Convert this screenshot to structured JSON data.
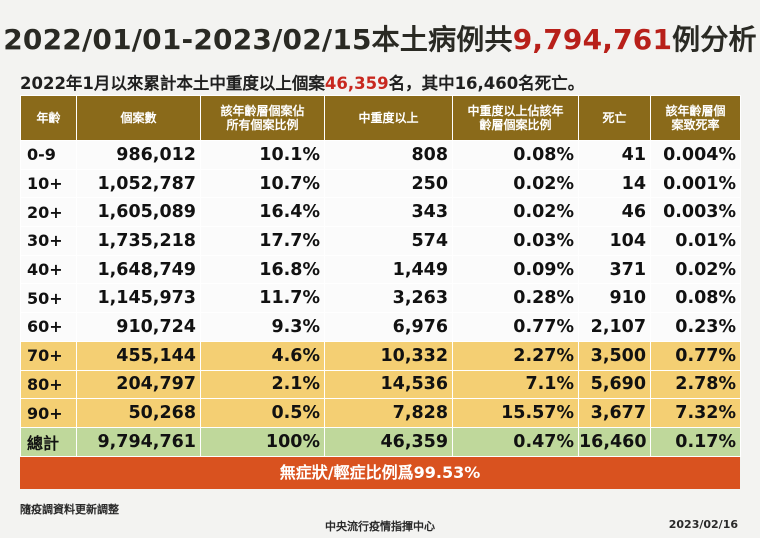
{
  "title": {
    "part1": "2022/01/01-2023/02/15本土病例共",
    "highlight": "9,794,761",
    "part2": "例分析"
  },
  "subtitle": {
    "part1": "2022年1月以來累計本土中重度以上個案",
    "highlight": "46,359",
    "part2": "名，其中16,460名死亡。"
  },
  "colors": {
    "header_bg": "#8a6a1a",
    "highlight_red": "#b8201a",
    "row_elderly": "#f4cf73",
    "row_total": "#bfd89b",
    "banner": "#d9521f"
  },
  "table": {
    "headers": [
      "年齡",
      "個案數",
      "該年齡層個案佔所有個案比例",
      "中重度以上",
      "中重度以上佔該年齡層個案比例",
      "死亡",
      "該年齡層個案致死率"
    ],
    "rows": [
      [
        "0-9",
        "986,012",
        "10.1%",
        "808",
        "0.08%",
        "41",
        "0.004%"
      ],
      [
        "10+",
        "1,052,787",
        "10.7%",
        "250",
        "0.02%",
        "14",
        "0.001%"
      ],
      [
        "20+",
        "1,605,089",
        "16.4%",
        "343",
        "0.02%",
        "46",
        "0.003%"
      ],
      [
        "30+",
        "1,735,218",
        "17.7%",
        "574",
        "0.03%",
        "104",
        "0.01%"
      ],
      [
        "40+",
        "1,648,749",
        "16.8%",
        "1,449",
        "0.09%",
        "371",
        "0.02%"
      ],
      [
        "50+",
        "1,145,973",
        "11.7%",
        "3,263",
        "0.28%",
        "910",
        "0.08%"
      ],
      [
        "60+",
        "910,724",
        "9.3%",
        "6,976",
        "0.77%",
        "2,107",
        "0.23%"
      ],
      [
        "70+",
        "455,144",
        "4.6%",
        "10,332",
        "2.27%",
        "3,500",
        "0.77%"
      ],
      [
        "80+",
        "204,797",
        "2.1%",
        "14,536",
        "7.1%",
        "5,690",
        "2.78%"
      ],
      [
        "90+",
        "50,268",
        "0.5%",
        "7,828",
        "15.57%",
        "3,677",
        "7.32%"
      ],
      [
        "總計",
        "9,794,761",
        "100%",
        "46,359",
        "0.47%",
        "16,460",
        "0.17%"
      ]
    ]
  },
  "banner": "無症狀/輕症比例爲99.53%",
  "footer": {
    "note": "隨疫調資料更新調整",
    "center": "中央流行疫情指揮中心",
    "date": "2023/02/16"
  }
}
